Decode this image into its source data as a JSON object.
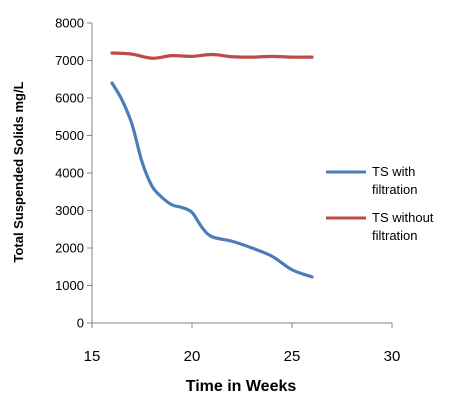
{
  "chart_data": {
    "type": "line",
    "xlabel": "Time in Weeks",
    "ylabel": "Total Suspended Solids mg/L",
    "xlim": [
      15,
      30
    ],
    "ylim": [
      0,
      8000
    ],
    "xticks": [
      15,
      20,
      25,
      30
    ],
    "yticks": [
      0,
      1000,
      2000,
      3000,
      4000,
      5000,
      6000,
      7000,
      8000
    ],
    "grid": false,
    "legend_position": "right",
    "series": [
      {
        "name": "TS with filtration",
        "legend_lines": [
          "TS with",
          "filtration"
        ],
        "color": "#4A7EBB",
        "x": [
          16,
          16.5,
          17,
          17.5,
          18,
          18.5,
          19,
          19.5,
          20,
          20.5,
          21,
          22,
          23,
          24,
          25,
          26
        ],
        "y": [
          6400,
          5950,
          5300,
          4300,
          3650,
          3350,
          3150,
          3080,
          2950,
          2550,
          2300,
          2180,
          2000,
          1780,
          1420,
          1230
        ]
      },
      {
        "name": "TS without filtration",
        "legend_lines": [
          "TS without",
          "filtration"
        ],
        "color": "#BE4B48",
        "x": [
          16,
          17,
          18,
          19,
          20,
          21,
          22,
          23,
          24,
          25,
          26
        ],
        "y": [
          7200,
          7170,
          7060,
          7130,
          7110,
          7160,
          7100,
          7090,
          7110,
          7090,
          7090
        ]
      }
    ]
  }
}
